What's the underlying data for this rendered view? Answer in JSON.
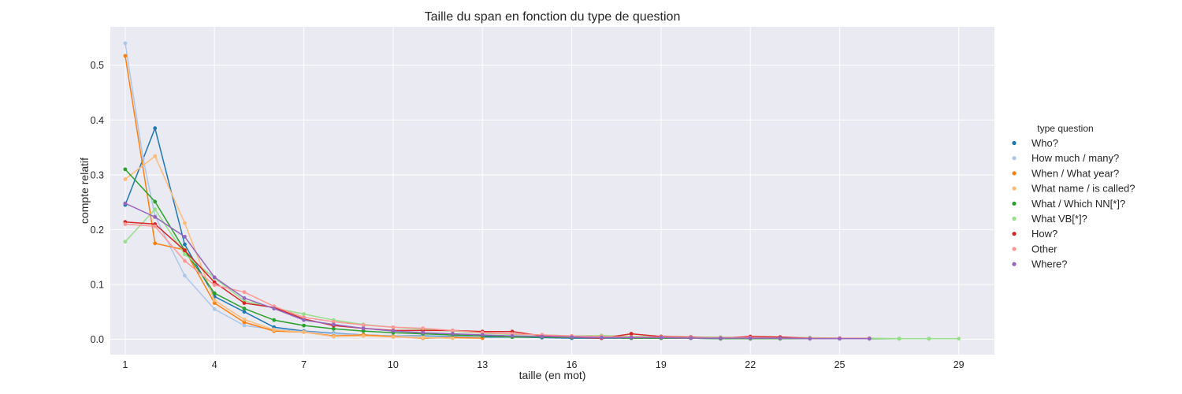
{
  "chart_data": {
    "type": "line",
    "title": "Taille du span en fonction du type de question",
    "xlabel": "taille (en mot)",
    "ylabel": "compte relatif",
    "xlim": [
      0.5,
      30.2
    ],
    "ylim": [
      -0.028,
      0.57
    ],
    "xticks": [
      1,
      4,
      7,
      10,
      13,
      16,
      19,
      22,
      25,
      29
    ],
    "yticks": [
      0.0,
      0.1,
      0.2,
      0.3,
      0.4,
      0.5
    ],
    "ytick_labels": [
      "0.0",
      "0.1",
      "0.2",
      "0.3",
      "0.4",
      "0.5"
    ],
    "grid": true,
    "legend": {
      "title": "type question",
      "position": "right"
    },
    "series": [
      {
        "name": "Who?",
        "color": "#1f77b4",
        "points": [
          [
            1,
            0.245
          ],
          [
            2,
            0.385
          ],
          [
            3,
            0.173
          ],
          [
            4,
            0.078
          ],
          [
            5,
            0.05
          ],
          [
            6,
            0.022
          ],
          [
            7,
            0.015
          ],
          [
            8,
            0.011
          ],
          [
            9,
            0.008
          ],
          [
            10,
            0.006
          ],
          [
            11,
            0.006
          ],
          [
            12,
            0.005
          ],
          [
            13,
            0.004
          ],
          [
            14,
            0.004
          ],
          [
            15,
            0.003
          ],
          [
            16,
            0.002
          ],
          [
            17,
            0.002
          ],
          [
            18,
            0.002
          ],
          [
            19,
            0.002
          ],
          [
            20,
            0.002
          ],
          [
            21,
            0.001
          ],
          [
            22,
            0.001
          ],
          [
            23,
            0.001
          ]
        ]
      },
      {
        "name": "How much / many?",
        "color": "#aec7e8",
        "points": [
          [
            1,
            0.54
          ],
          [
            1.6,
            0.33
          ],
          [
            2,
            0.225
          ],
          [
            3,
            0.116
          ],
          [
            4,
            0.055
          ],
          [
            5,
            0.025
          ],
          [
            6,
            0.018
          ],
          [
            7,
            0.014
          ],
          [
            8,
            0.01
          ],
          [
            9,
            0.008
          ],
          [
            10,
            0.006
          ],
          [
            11,
            0.005
          ],
          [
            12,
            0.004
          ],
          [
            13,
            0.004
          ]
        ]
      },
      {
        "name": "When / What year?",
        "color": "#ff7f0e",
        "points": [
          [
            1,
            0.517
          ],
          [
            2,
            0.175
          ],
          [
            3,
            0.163
          ],
          [
            4,
            0.066
          ],
          [
            5,
            0.031
          ],
          [
            6,
            0.015
          ],
          [
            7,
            0.013
          ],
          [
            8,
            0.006
          ],
          [
            9,
            0.008
          ],
          [
            10,
            0.005
          ],
          [
            11,
            0.002
          ],
          [
            12,
            0.003
          ],
          [
            13,
            0.002
          ]
        ]
      },
      {
        "name": "What name / is called?",
        "color": "#ffbb78",
        "points": [
          [
            1,
            0.292
          ],
          [
            2,
            0.334
          ],
          [
            3,
            0.212
          ],
          [
            4,
            0.071
          ],
          [
            5,
            0.036
          ],
          [
            6,
            0.017
          ],
          [
            7,
            0.013
          ],
          [
            8,
            0.005
          ],
          [
            9,
            0.006
          ],
          [
            10,
            0.004
          ],
          [
            11,
            0.003
          ],
          [
            12,
            0.002
          ]
        ]
      },
      {
        "name": "What / Which NN[*]?",
        "color": "#2ca02c",
        "points": [
          [
            1,
            0.31
          ],
          [
            2,
            0.251
          ],
          [
            3,
            0.162
          ],
          [
            4,
            0.084
          ],
          [
            5,
            0.056
          ],
          [
            6,
            0.035
          ],
          [
            7,
            0.025
          ],
          [
            8,
            0.019
          ],
          [
            9,
            0.015
          ],
          [
            10,
            0.012
          ],
          [
            11,
            0.01
          ],
          [
            12,
            0.008
          ],
          [
            13,
            0.006
          ],
          [
            14,
            0.004
          ],
          [
            15,
            0.004
          ],
          [
            16,
            0.003
          ],
          [
            17,
            0.003
          ],
          [
            18,
            0.002
          ],
          [
            19,
            0.002
          ],
          [
            20,
            0.002
          ],
          [
            21,
            0.001
          ],
          [
            22,
            0.001
          ],
          [
            23,
            0.001
          ],
          [
            24,
            0.001
          ],
          [
            25,
            0.001
          ],
          [
            26,
            0.001
          ],
          [
            27,
            0.001
          ],
          [
            28,
            0.001
          ]
        ]
      },
      {
        "name": "What VB[*]?",
        "color": "#98df8a",
        "points": [
          [
            1,
            0.178
          ],
          [
            2,
            0.237
          ],
          [
            3,
            0.155
          ],
          [
            4,
            0.112
          ],
          [
            5,
            0.07
          ],
          [
            6,
            0.057
          ],
          [
            7,
            0.046
          ],
          [
            8,
            0.035
          ],
          [
            9,
            0.027
          ],
          [
            10,
            0.022
          ],
          [
            11,
            0.018
          ],
          [
            12,
            0.015
          ],
          [
            13,
            0.011
          ],
          [
            14,
            0.009
          ],
          [
            15,
            0.008
          ],
          [
            16,
            0.006
          ],
          [
            17,
            0.007
          ],
          [
            18,
            0.005
          ],
          [
            19,
            0.005
          ],
          [
            20,
            0.004
          ],
          [
            21,
            0.004
          ],
          [
            22,
            0.003
          ],
          [
            23,
            0.003
          ],
          [
            24,
            0.003
          ],
          [
            25,
            0.002
          ],
          [
            26,
            0.002
          ],
          [
            27,
            0.001
          ],
          [
            28,
            0.001
          ],
          [
            29,
            0.001
          ]
        ]
      },
      {
        "name": "How?",
        "color": "#d62728",
        "points": [
          [
            1,
            0.214
          ],
          [
            2,
            0.21
          ],
          [
            3,
            0.162
          ],
          [
            4,
            0.104
          ],
          [
            5,
            0.066
          ],
          [
            6,
            0.058
          ],
          [
            7,
            0.037
          ],
          [
            8,
            0.025
          ],
          [
            9,
            0.02
          ],
          [
            10,
            0.016
          ],
          [
            11,
            0.016
          ],
          [
            12,
            0.016
          ],
          [
            13,
            0.014
          ],
          [
            14,
            0.014
          ],
          [
            15,
            0.006
          ],
          [
            16,
            0.004
          ],
          [
            17,
            0.002
          ],
          [
            18,
            0.01
          ],
          [
            19,
            0.005
          ],
          [
            20,
            0.004
          ],
          [
            21,
            0.002
          ],
          [
            22,
            0.005
          ],
          [
            23,
            0.004
          ],
          [
            24,
            0.002
          ],
          [
            25,
            0.002
          ]
        ]
      },
      {
        "name": "Other",
        "color": "#ff9896",
        "points": [
          [
            1,
            0.21
          ],
          [
            2,
            0.206
          ],
          [
            3,
            0.143
          ],
          [
            4,
            0.099
          ],
          [
            5,
            0.086
          ],
          [
            6,
            0.06
          ],
          [
            7,
            0.04
          ],
          [
            8,
            0.032
          ],
          [
            9,
            0.026
          ],
          [
            10,
            0.022
          ],
          [
            11,
            0.02
          ],
          [
            12,
            0.016
          ],
          [
            13,
            0.012
          ],
          [
            14,
            0.01
          ],
          [
            15,
            0.008
          ],
          [
            16,
            0.006
          ],
          [
            17,
            0.005
          ],
          [
            18,
            0.004
          ],
          [
            19,
            0.004
          ],
          [
            20,
            0.003
          ],
          [
            21,
            0.003
          ],
          [
            22,
            0.003
          ],
          [
            23,
            0.002
          ],
          [
            24,
            0.002
          ],
          [
            25,
            0.002
          ],
          [
            26,
            0.002
          ]
        ]
      },
      {
        "name": "Where?",
        "color": "#9467bd",
        "points": [
          [
            1,
            0.248
          ],
          [
            2,
            0.223
          ],
          [
            3,
            0.187
          ],
          [
            4,
            0.113
          ],
          [
            5,
            0.075
          ],
          [
            6,
            0.056
          ],
          [
            7,
            0.035
          ],
          [
            8,
            0.027
          ],
          [
            9,
            0.02
          ],
          [
            10,
            0.015
          ],
          [
            11,
            0.012
          ],
          [
            12,
            0.01
          ],
          [
            13,
            0.008
          ],
          [
            14,
            0.006
          ],
          [
            15,
            0.005
          ],
          [
            16,
            0.004
          ],
          [
            17,
            0.003
          ],
          [
            18,
            0.003
          ],
          [
            19,
            0.003
          ],
          [
            20,
            0.002
          ],
          [
            21,
            0.002
          ],
          [
            22,
            0.002
          ],
          [
            23,
            0.002
          ],
          [
            24,
            0.001
          ],
          [
            25,
            0.001
          ],
          [
            26,
            0.001
          ]
        ]
      }
    ]
  }
}
